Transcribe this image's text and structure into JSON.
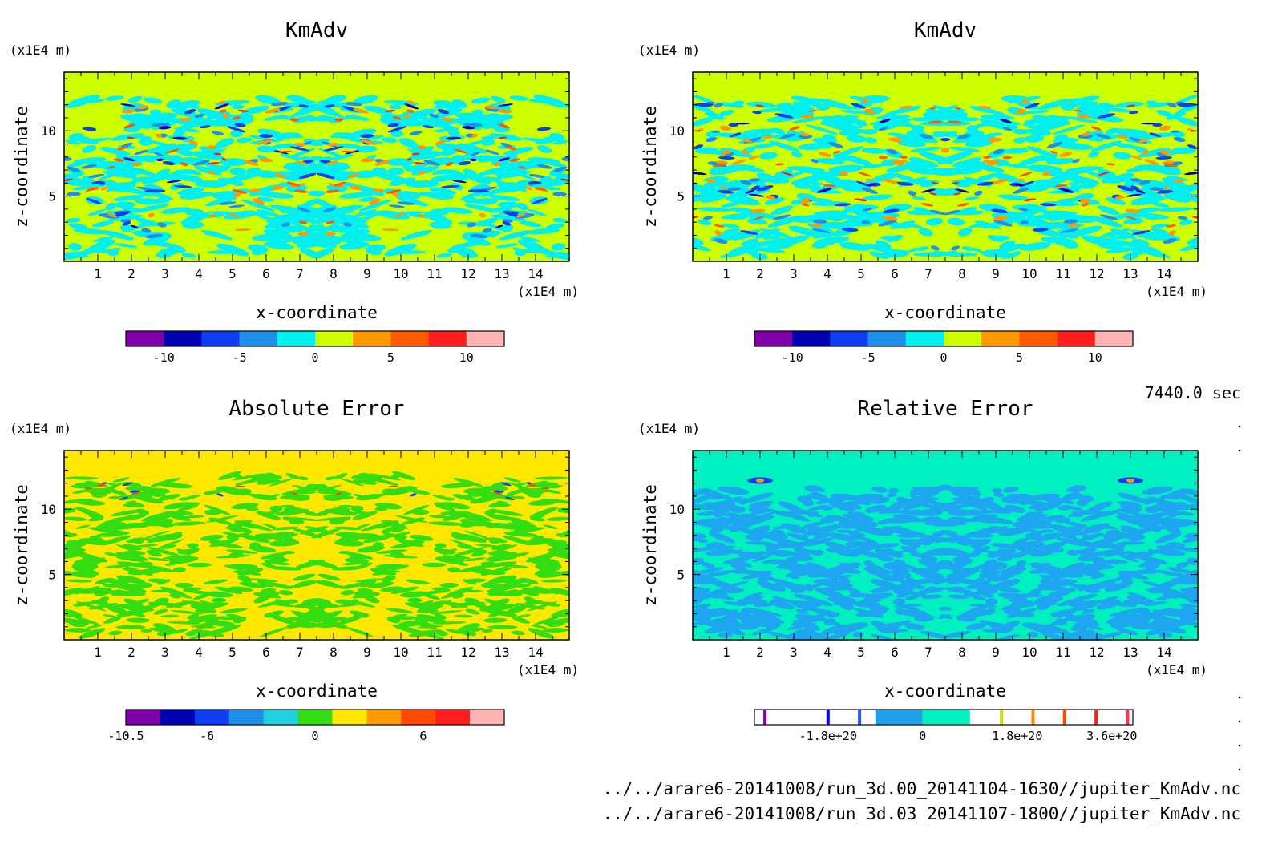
{
  "time_label": "7440.0 sec",
  "files": [
    "../../arare6-20141008/run_3d.00_20141104-1630//jupiter_KmAdv.nc",
    "../../arare6-20141008/run_3d.03_20141107-1800//jupiter_KmAdv.nc"
  ],
  "colors": {
    "kmadv_scale": [
      "#7f00a8",
      "#0000b2",
      "#0d3ff0",
      "#1f8fe8",
      "#00f0f0",
      "#ccff00",
      "#ff9900",
      "#ff5a00",
      "#ff1e1e",
      "#ffb3b3"
    ],
    "abs_scale": [
      "#7f00a8",
      "#0000b2",
      "#0d3ff0",
      "#1f8fe8",
      "#1fd1e0",
      "#33dd11",
      "#ffe800",
      "#ff9900",
      "#ff4a00",
      "#ff1e1e",
      "#ffb3b3"
    ],
    "rel_scale": [
      "#ffffff",
      "#7f00a8",
      "#ffffff",
      "#0000ff",
      "#ffffff",
      "#1f5fff",
      "#ffffff",
      "#1f9fe8",
      "#00f0c0",
      "#ffffff",
      "#ccdd00",
      "#ffffff",
      "#ff8800",
      "#ffffff",
      "#ff4a00",
      "#ffffff",
      "#ff1e1e",
      "#ffffff",
      "#ff3355",
      "#ffffff"
    ],
    "kmadv_field": {
      "bg": "#ccff00",
      "main": "#00f0f0",
      "mid": "#1f8fe8",
      "strong": "#0d3ff0",
      "deep": "#0000b2",
      "pos1": "#ff9900",
      "pos2": "#ff5a00",
      "pos3": "#ff1e1e"
    },
    "abs_field": {
      "bg": "#ffe800",
      "main": "#33dd11",
      "neg": "#0d3ff0",
      "pos": "#ff4a00"
    },
    "rel_field": {
      "bg": "#00f0c0",
      "main": "#1fa6f0",
      "spot_neg": "#0d3ff0",
      "spot_pos": "#ff9900"
    }
  },
  "chart_data": [
    {
      "type": "heatmap",
      "title": "KmAdv",
      "xlabel": "x-coordinate",
      "ylabel": "z-coordinate",
      "x_unit": "(x1E4 m)",
      "y_unit": "(x1E4 m)",
      "xlim": [
        0,
        15
      ],
      "ylim": [
        0,
        14.5
      ],
      "x_ticks": [
        1,
        2,
        3,
        4,
        5,
        6,
        7,
        8,
        9,
        10,
        11,
        12,
        13,
        14
      ],
      "y_ticks": [
        5,
        10
      ],
      "colorbar": {
        "range": [
          -12.5,
          12.5
        ],
        "ticks": [
          -10,
          -5,
          0,
          5,
          10
        ],
        "tick_labels": [
          "-10",
          "-5",
          "0",
          "5",
          "10"
        ]
      }
    },
    {
      "type": "heatmap",
      "title": "KmAdv",
      "xlabel": "x-coordinate",
      "ylabel": "z-coordinate",
      "x_unit": "(x1E4 m)",
      "y_unit": "(x1E4 m)",
      "xlim": [
        0,
        15
      ],
      "ylim": [
        0,
        14.5
      ],
      "x_ticks": [
        1,
        2,
        3,
        4,
        5,
        6,
        7,
        8,
        9,
        10,
        11,
        12,
        13,
        14
      ],
      "y_ticks": [
        5,
        10
      ],
      "colorbar": {
        "range": [
          -12.5,
          12.5
        ],
        "ticks": [
          -10,
          -5,
          0,
          5,
          10
        ],
        "tick_labels": [
          "-10",
          "-5",
          "0",
          "5",
          "10"
        ]
      }
    },
    {
      "type": "heatmap",
      "title": "Absolute Error",
      "xlabel": "x-coordinate",
      "ylabel": "z-coordinate",
      "x_unit": "(x1E4 m)",
      "y_unit": "(x1E4 m)",
      "xlim": [
        0,
        15
      ],
      "ylim": [
        0,
        14.5
      ],
      "x_ticks": [
        1,
        2,
        3,
        4,
        5,
        6,
        7,
        8,
        9,
        10,
        11,
        12,
        13,
        14
      ],
      "y_ticks": [
        5,
        10
      ],
      "colorbar": {
        "range": [
          -10.5,
          10.5
        ],
        "ticks": [
          -10.5,
          -6,
          0,
          6
        ],
        "tick_labels": [
          "-10.5",
          "-6",
          "0",
          "6"
        ]
      }
    },
    {
      "type": "heatmap",
      "title": "Relative Error",
      "xlabel": "x-coordinate",
      "ylabel": "z-coordinate",
      "x_unit": "(x1E4 m)",
      "y_unit": "(x1E4 m)",
      "xlim": [
        0,
        15
      ],
      "ylim": [
        0,
        14.5
      ],
      "x_ticks": [
        1,
        2,
        3,
        4,
        5,
        6,
        7,
        8,
        9,
        10,
        11,
        12,
        13,
        14
      ],
      "y_ticks": [
        5,
        10
      ],
      "colorbar": {
        "range": [
          -3.2e+20,
          4e+20
        ],
        "ticks": [
          -1.8e+20,
          0,
          1.8e+20,
          3.6e+20
        ],
        "tick_labels": [
          "-1.8e+20",
          "0",
          "1.8e+20",
          "3.6e+20"
        ]
      }
    }
  ]
}
